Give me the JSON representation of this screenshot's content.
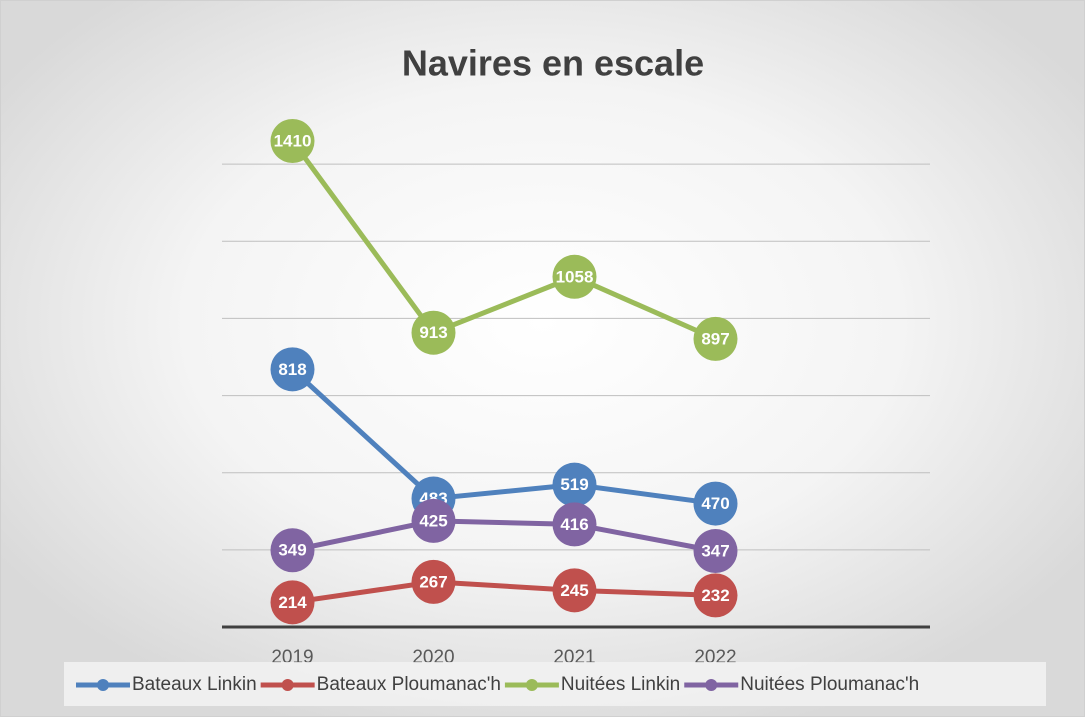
{
  "chart_data": {
    "type": "line",
    "title": "Navires en escale",
    "categories": [
      "2019",
      "2020",
      "2021",
      "2022"
    ],
    "series": [
      {
        "name": "Bateaux Linkin",
        "color": "#4f81bd",
        "values": [
          818,
          483,
          519,
          470
        ]
      },
      {
        "name": "Bateaux Ploumanac'h",
        "color": "#c0504d",
        "values": [
          214,
          267,
          245,
          232
        ]
      },
      {
        "name": "Nuitées Linkin",
        "color": "#9bbb59",
        "values": [
          1410,
          913,
          1058,
          897
        ]
      },
      {
        "name": "Nuitées Ploumanac'h",
        "color": "#8064a2",
        "values": [
          349,
          425,
          416,
          347
        ]
      }
    ],
    "ylim": [
      150,
      1550
    ],
    "yticks": [
      150,
      350,
      550,
      750,
      950,
      1150,
      1350
    ],
    "grid": true,
    "legend": "bottom"
  }
}
